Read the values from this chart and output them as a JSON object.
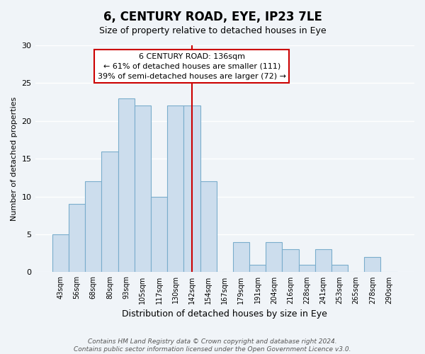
{
  "title": "6, CENTURY ROAD, EYE, IP23 7LE",
  "subtitle": "Size of property relative to detached houses in Eye",
  "xlabel": "Distribution of detached houses by size in Eye",
  "ylabel": "Number of detached properties",
  "categories": [
    "43sqm",
    "56sqm",
    "68sqm",
    "80sqm",
    "93sqm",
    "105sqm",
    "117sqm",
    "130sqm",
    "142sqm",
    "154sqm",
    "167sqm",
    "179sqm",
    "191sqm",
    "204sqm",
    "216sqm",
    "228sqm",
    "241sqm",
    "253sqm",
    "265sqm",
    "278sqm",
    "290sqm"
  ],
  "values": [
    5,
    9,
    12,
    16,
    23,
    22,
    10,
    22,
    22,
    12,
    0,
    4,
    1,
    4,
    3,
    1,
    3,
    1,
    0,
    2,
    0
  ],
  "bar_color": "#ccdded",
  "bar_edge_color": "#7aadcc",
  "ylim": [
    0,
    30
  ],
  "yticks": [
    0,
    5,
    10,
    15,
    20,
    25,
    30
  ],
  "vline_x": 8,
  "vline_color": "#cc0000",
  "annotation_title": "6 CENTURY ROAD: 136sqm",
  "annotation_line1": "← 61% of detached houses are smaller (111)",
  "annotation_line2": "39% of semi-detached houses are larger (72) →",
  "annotation_box_color": "#ffffff",
  "annotation_box_edge": "#cc0000",
  "footer1": "Contains HM Land Registry data © Crown copyright and database right 2024.",
  "footer2": "Contains public sector information licensed under the Open Government Licence v3.0.",
  "bg_color": "#f0f4f8",
  "grid_color": "#ffffff"
}
